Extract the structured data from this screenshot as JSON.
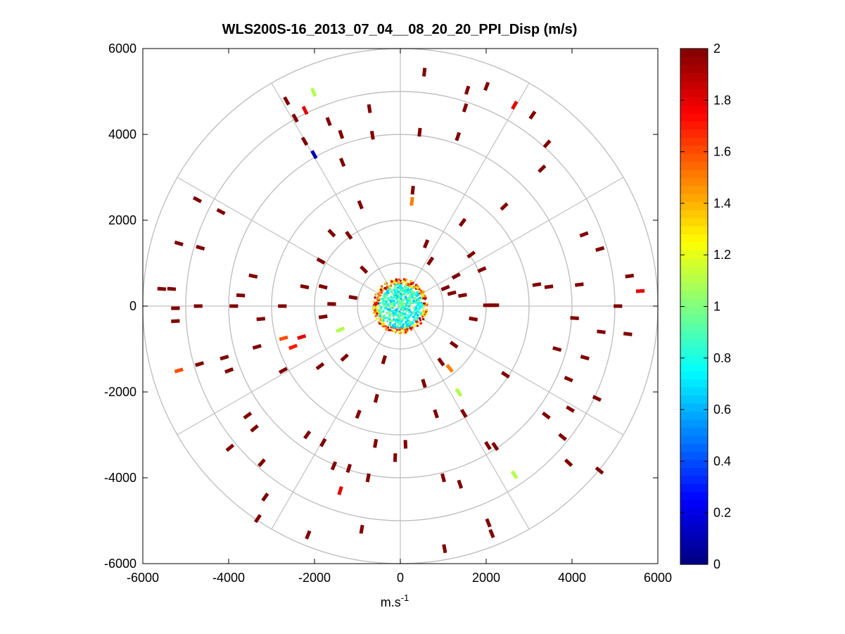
{
  "chart_data": {
    "type": "ppi_polar_scatter",
    "title": "WLS200S-16_2013_07_04__08_20_20_PPI_Disp (m/s)",
    "xlabel_base": "m.s",
    "xlabel_sup": "-1",
    "ylabel": "",
    "xlim": [
      -6000,
      6000
    ],
    "ylim": [
      -6000,
      6000
    ],
    "xticks": [
      -6000,
      -4000,
      -2000,
      0,
      2000,
      4000,
      6000
    ],
    "yticks": [
      -6000,
      -4000,
      -2000,
      0,
      2000,
      4000,
      6000
    ],
    "xtick_labels": [
      "-6000",
      "-4000",
      "-2000",
      "0",
      "2000",
      "4000",
      "6000"
    ],
    "ytick_labels": [
      "-6000",
      "-4000",
      "-2000",
      "0",
      "2000",
      "4000",
      "6000"
    ],
    "range_rings_m": [
      1000,
      2000,
      3000,
      4000,
      5000,
      6000
    ],
    "spoke_angles_deg": [
      0,
      30,
      60,
      90,
      120,
      150,
      180,
      210,
      240,
      270,
      300,
      330
    ],
    "colorbar": {
      "min": 0,
      "max": 2,
      "label": "",
      "ticks": [
        0,
        0.2,
        0.4,
        0.6,
        0.8,
        1,
        1.2,
        1.4,
        1.6,
        1.8,
        2
      ],
      "tick_labels": [
        "0",
        "0.2",
        "0.4",
        "0.6",
        "0.8",
        "1",
        "1.2",
        "1.4",
        "1.6",
        "1.8",
        "2"
      ],
      "colormap": "jet"
    },
    "points": [
      {
        "x": 560,
        "y": 5450,
        "v": 2
      },
      {
        "x": 1560,
        "y": 5030,
        "v": 2
      },
      {
        "x": 2010,
        "y": 5120,
        "v": 2
      },
      {
        "x": 2660,
        "y": 4680,
        "v": 1.8
      },
      {
        "x": 3080,
        "y": 4450,
        "v": 2
      },
      {
        "x": 3420,
        "y": 3780,
        "v": 2
      },
      {
        "x": 3300,
        "y": 3200,
        "v": 2
      },
      {
        "x": 2420,
        "y": 2320,
        "v": 2
      },
      {
        "x": 1510,
        "y": 4620,
        "v": 2
      },
      {
        "x": 1340,
        "y": 3950,
        "v": 2
      },
      {
        "x": 450,
        "y": 4050,
        "v": 2
      },
      {
        "x": -720,
        "y": 4600,
        "v": 2
      },
      {
        "x": -1670,
        "y": 4300,
        "v": 2
      },
      {
        "x": -1380,
        "y": 4000,
        "v": 2
      },
      {
        "x": -2230,
        "y": 3840,
        "v": 2
      },
      {
        "x": -2650,
        "y": 4780,
        "v": 2
      },
      {
        "x": -2450,
        "y": 4380,
        "v": 2
      },
      {
        "x": -2020,
        "y": 4980,
        "v": 1.1
      },
      {
        "x": -2220,
        "y": 4560,
        "v": 1.8
      },
      {
        "x": -2010,
        "y": 3530,
        "v": 0.1
      },
      {
        "x": -650,
        "y": 3980,
        "v": 2
      },
      {
        "x": -930,
        "y": 2360,
        "v": 2
      },
      {
        "x": 290,
        "y": 2700,
        "v": 2
      },
      {
        "x": 270,
        "y": 2440,
        "v": 1.5
      },
      {
        "x": -4730,
        "y": 2480,
        "v": 2
      },
      {
        "x": -4180,
        "y": 2200,
        "v": 2
      },
      {
        "x": -5160,
        "y": 1460,
        "v": 2
      },
      {
        "x": -4660,
        "y": 1360,
        "v": 2
      },
      {
        "x": -5560,
        "y": 400,
        "v": 2
      },
      {
        "x": -5330,
        "y": 400,
        "v": 2
      },
      {
        "x": -5240,
        "y": -50,
        "v": 2
      },
      {
        "x": -5240,
        "y": -350,
        "v": 2
      },
      {
        "x": -4710,
        "y": 0,
        "v": 2
      },
      {
        "x": -3880,
        "y": 0,
        "v": 2
      },
      {
        "x": -3720,
        "y": 250,
        "v": 2
      },
      {
        "x": -3430,
        "y": 700,
        "v": 2
      },
      {
        "x": -3250,
        "y": -300,
        "v": 2
      },
      {
        "x": -2750,
        "y": 0,
        "v": 2
      },
      {
        "x": -2230,
        "y": 450,
        "v": 2
      },
      {
        "x": -1800,
        "y": 450,
        "v": 2
      },
      {
        "x": -2720,
        "y": -750,
        "v": 1.6
      },
      {
        "x": -2500,
        "y": -950,
        "v": 1.7
      },
      {
        "x": -2300,
        "y": -720,
        "v": 1.8
      },
      {
        "x": -3340,
        "y": -950,
        "v": 2
      },
      {
        "x": -2730,
        "y": -1500,
        "v": 2
      },
      {
        "x": -1870,
        "y": -1400,
        "v": 2
      },
      {
        "x": -5160,
        "y": -1500,
        "v": 1.6
      },
      {
        "x": -4680,
        "y": -1350,
        "v": 2
      },
      {
        "x": -4100,
        "y": -1200,
        "v": 2
      },
      {
        "x": -3990,
        "y": -1500,
        "v": 2
      },
      {
        "x": -3560,
        "y": -2550,
        "v": 2
      },
      {
        "x": -3400,
        "y": -2850,
        "v": 2
      },
      {
        "x": -3970,
        "y": -3300,
        "v": 2
      },
      {
        "x": -3230,
        "y": -3650,
        "v": 2
      },
      {
        "x": -3150,
        "y": -4450,
        "v": 2
      },
      {
        "x": -3320,
        "y": -4950,
        "v": 2
      },
      {
        "x": -2170,
        "y": -3000,
        "v": 2
      },
      {
        "x": -1800,
        "y": -3180,
        "v": 2
      },
      {
        "x": -1550,
        "y": -3720,
        "v": 2
      },
      {
        "x": -1400,
        "y": -4300,
        "v": 1.8
      },
      {
        "x": -1200,
        "y": -3780,
        "v": 2
      },
      {
        "x": -750,
        "y": -4000,
        "v": 2
      },
      {
        "x": -2150,
        "y": -5330,
        "v": 2
      },
      {
        "x": -900,
        "y": -5200,
        "v": 2
      },
      {
        "x": -580,
        "y": -3200,
        "v": 2
      },
      {
        "x": -980,
        "y": -2520,
        "v": 2
      },
      {
        "x": -560,
        "y": -2150,
        "v": 2
      },
      {
        "x": 120,
        "y": -3220,
        "v": 2
      },
      {
        "x": -120,
        "y": -3530,
        "v": 2
      },
      {
        "x": 830,
        "y": -2510,
        "v": 2
      },
      {
        "x": 1480,
        "y": -2500,
        "v": 2
      },
      {
        "x": 1360,
        "y": -2010,
        "v": 1.1
      },
      {
        "x": 2210,
        "y": -3270,
        "v": 2
      },
      {
        "x": 2040,
        "y": -3250,
        "v": 2
      },
      {
        "x": 2450,
        "y": -1600,
        "v": 2
      },
      {
        "x": 3400,
        "y": -2550,
        "v": 2
      },
      {
        "x": 3960,
        "y": -2400,
        "v": 2
      },
      {
        "x": 4580,
        "y": -2150,
        "v": 2
      },
      {
        "x": 3920,
        "y": -1700,
        "v": 2
      },
      {
        "x": 4300,
        "y": -1200,
        "v": 2
      },
      {
        "x": 3650,
        "y": -1000,
        "v": 2
      },
      {
        "x": 4680,
        "y": -600,
        "v": 2
      },
      {
        "x": 5300,
        "y": -650,
        "v": 2
      },
      {
        "x": 4060,
        "y": -280,
        "v": 2
      },
      {
        "x": 5070,
        "y": 0,
        "v": 2
      },
      {
        "x": 4170,
        "y": 500,
        "v": 2
      },
      {
        "x": 3460,
        "y": 450,
        "v": 2
      },
      {
        "x": 3180,
        "y": 500,
        "v": 2
      },
      {
        "x": 4650,
        "y": 1330,
        "v": 2
      },
      {
        "x": 4280,
        "y": 1670,
        "v": 2
      },
      {
        "x": 5340,
        "y": 700,
        "v": 2
      },
      {
        "x": 5590,
        "y": 350,
        "v": 1.8
      },
      {
        "x": 2130,
        "y": 20,
        "v": 1.8
      },
      {
        "x": 2200,
        "y": 20,
        "v": 2
      },
      {
        "x": 2030,
        "y": 20,
        "v": 2
      },
      {
        "x": 3920,
        "y": -3650,
        "v": 2
      },
      {
        "x": 3780,
        "y": -3050,
        "v": 2
      },
      {
        "x": 4640,
        "y": -3830,
        "v": 2
      },
      {
        "x": 2660,
        "y": -3930,
        "v": 1.1
      },
      {
        "x": 1000,
        "y": -4000,
        "v": 2
      },
      {
        "x": 1390,
        "y": -4150,
        "v": 2
      },
      {
        "x": 2050,
        "y": -5050,
        "v": 2
      },
      {
        "x": 2130,
        "y": -5300,
        "v": 2
      },
      {
        "x": 1030,
        "y": -5650,
        "v": 2
      },
      {
        "x": -1350,
        "y": 3350,
        "v": 2
      },
      {
        "x": -1600,
        "y": 1700,
        "v": 2
      },
      {
        "x": -1200,
        "y": 1650,
        "v": 2
      },
      {
        "x": 1450,
        "y": 1950,
        "v": 2
      },
      {
        "x": 1650,
        "y": 1200,
        "v": 2
      },
      {
        "x": 1900,
        "y": 850,
        "v": 2
      },
      {
        "x": 1300,
        "y": 700,
        "v": 2
      },
      {
        "x": 1050,
        "y": 420,
        "v": 2
      },
      {
        "x": 1450,
        "y": 250,
        "v": 2
      },
      {
        "x": -1400,
        "y": -550,
        "v": 1.1
      },
      {
        "x": -1300,
        "y": -1200,
        "v": 2
      },
      {
        "x": 950,
        "y": -1300,
        "v": 2
      },
      {
        "x": 1150,
        "y": -1450,
        "v": 1.5
      },
      {
        "x": 550,
        "y": -1800,
        "v": 2
      },
      {
        "x": -380,
        "y": -1250,
        "v": 2
      },
      {
        "x": -1850,
        "y": 1050,
        "v": 2
      },
      {
        "x": -850,
        "y": 850,
        "v": 2
      },
      {
        "x": 600,
        "y": 1450,
        "v": 2
      },
      {
        "x": 1200,
        "y": 300,
        "v": 2
      },
      {
        "x": 1250,
        "y": -900,
        "v": 2
      },
      {
        "x": -1800,
        "y": -250,
        "v": 2
      },
      {
        "x": -1600,
        "y": 50,
        "v": 2
      },
      {
        "x": -1100,
        "y": 200,
        "v": 2
      },
      {
        "x": 1700,
        "y": -300,
        "v": 2
      },
      {
        "x": 700,
        "y": 1050,
        "v": 2
      }
    ]
  }
}
